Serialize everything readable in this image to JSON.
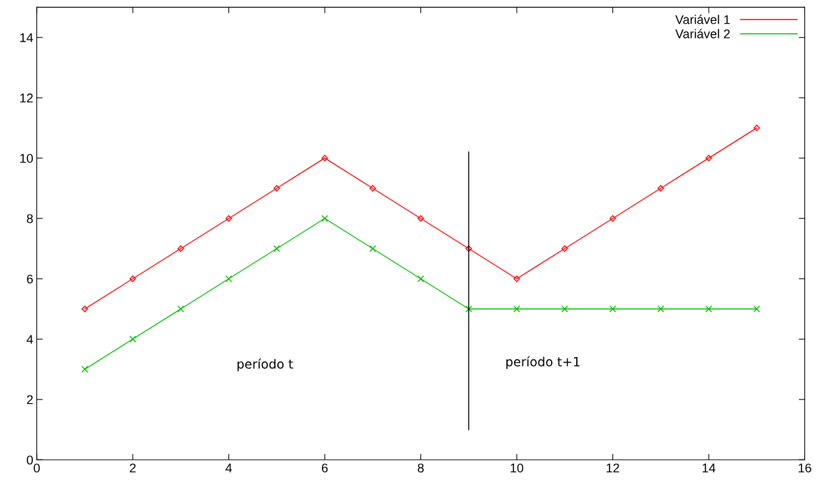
{
  "chart_data": {
    "type": "line",
    "x": [
      1,
      2,
      3,
      4,
      5,
      6,
      7,
      8,
      9,
      10,
      11,
      12,
      13,
      14,
      15
    ],
    "series": [
      {
        "name": "Variável 1",
        "color": "#ff0000",
        "marker": "diamond",
        "values": [
          5,
          6,
          7,
          8,
          9,
          10,
          9,
          8,
          7,
          6,
          7,
          8,
          9,
          10,
          11
        ]
      },
      {
        "name": "Variável 2",
        "color": "#00c000",
        "marker": "cross",
        "values": [
          3,
          4,
          5,
          6,
          7,
          8,
          7,
          6,
          5,
          5,
          5,
          5,
          5,
          5,
          5
        ]
      },
      {
        "color": "#000000",
        "marker": "none",
        "x": [
          9,
          9
        ],
        "values": [
          1,
          10.2
        ]
      }
    ],
    "annotations": [
      "período t",
      "período t+1"
    ],
    "xlim": [
      0,
      16
    ],
    "xticks": [
      0,
      2,
      4,
      6,
      8,
      10,
      12,
      14,
      16
    ],
    "ylim": [
      0,
      15
    ],
    "yticks": [
      0,
      2,
      4,
      6,
      8,
      10,
      12,
      14
    ],
    "legend": "top right",
    "grid": false,
    "line_style": "solid"
  }
}
